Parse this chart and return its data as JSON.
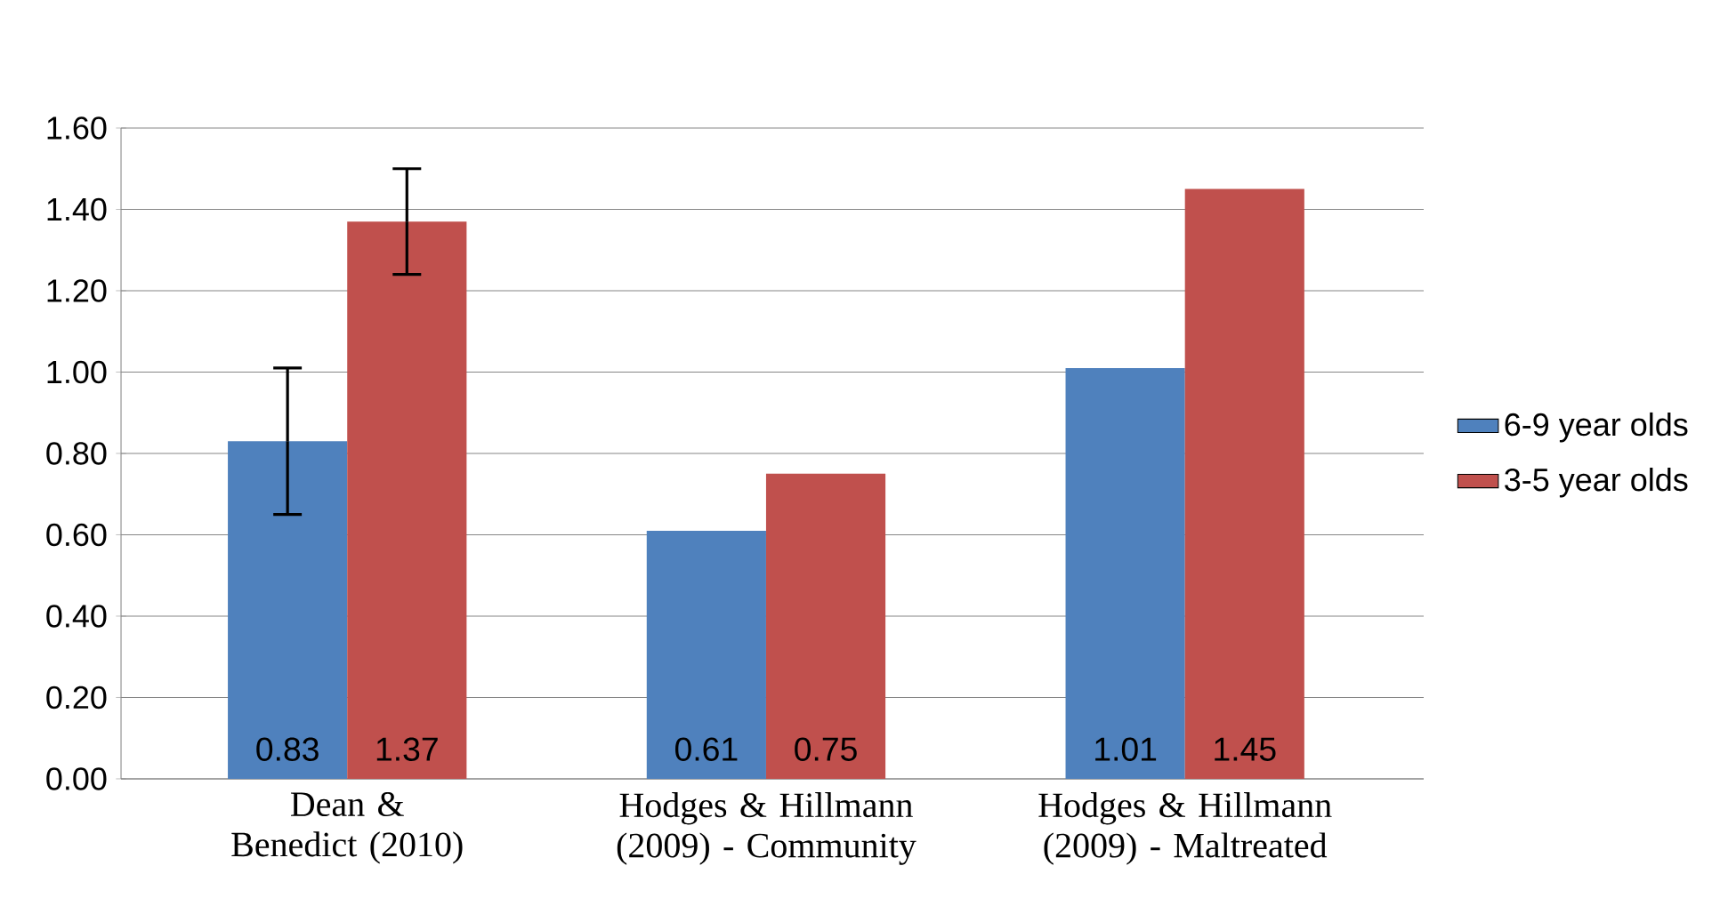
{
  "chart_data": {
    "type": "bar",
    "categories": [
      "Dean & Benedict (2010)",
      "Hodges & Hillmann (2009) - Community",
      "Hodges & Hillmann (2009) - Maltreated"
    ],
    "series": [
      {
        "name": "6-9 year olds",
        "color": "#4f81bd",
        "values": [
          0.83,
          0.61,
          1.01
        ],
        "errors": [
          0.18,
          null,
          null
        ]
      },
      {
        "name": "3-5 year olds",
        "color": "#c0504d",
        "values": [
          1.37,
          0.75,
          1.45
        ],
        "errors": [
          0.13,
          null,
          null
        ]
      }
    ],
    "ylim": [
      0,
      1.6
    ],
    "yticks": [
      {
        "value": 0,
        "label": "0.00"
      },
      {
        "value": 0.2,
        "label": "0.20"
      },
      {
        "value": 0.4,
        "label": "0.40"
      },
      {
        "value": 0.6,
        "label": "0.60"
      },
      {
        "value": 0.8,
        "label": "0.80"
      },
      {
        "value": 1.0,
        "label": "1.00"
      },
      {
        "value": 1.2,
        "label": "1.20"
      },
      {
        "value": 1.4,
        "label": "1.40"
      },
      {
        "value": 1.6,
        "label": "1.60"
      }
    ],
    "grid": "y",
    "legend": "right",
    "data_labels": true
  }
}
